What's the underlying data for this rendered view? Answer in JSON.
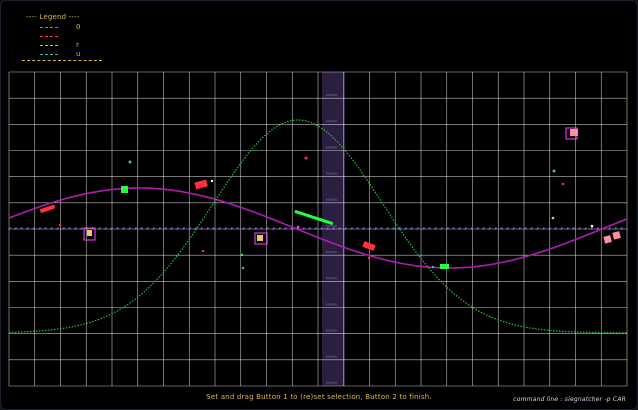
{
  "legend": {
    "title": "Legend",
    "items": [
      {
        "label": "0",
        "color": "#19c83c"
      },
      {
        "label": "",
        "color": "#ff3040"
      },
      {
        "label": "r",
        "color": "#d7b84a"
      },
      {
        "label": "u",
        "color": "#40b8c8"
      }
    ]
  },
  "status": {
    "message": "Set and drag Button 1 to (re)set selection, Button 2 to finish."
  },
  "command": {
    "text": "command line : siegnatcher -p CAR"
  },
  "colors": {
    "background": "#000000",
    "grid": "#ffffff",
    "highlight_column": "#2a1f3e",
    "sine_curve": "#b21ab2",
    "gaussian_curve": "#19c83c",
    "marker_red": "#ff3040",
    "marker_green": "#22ff44",
    "marker_magenta": "#ff44ff",
    "marker_pink": "#ff8fa0",
    "text_yellow": "#d7b84a"
  }
}
